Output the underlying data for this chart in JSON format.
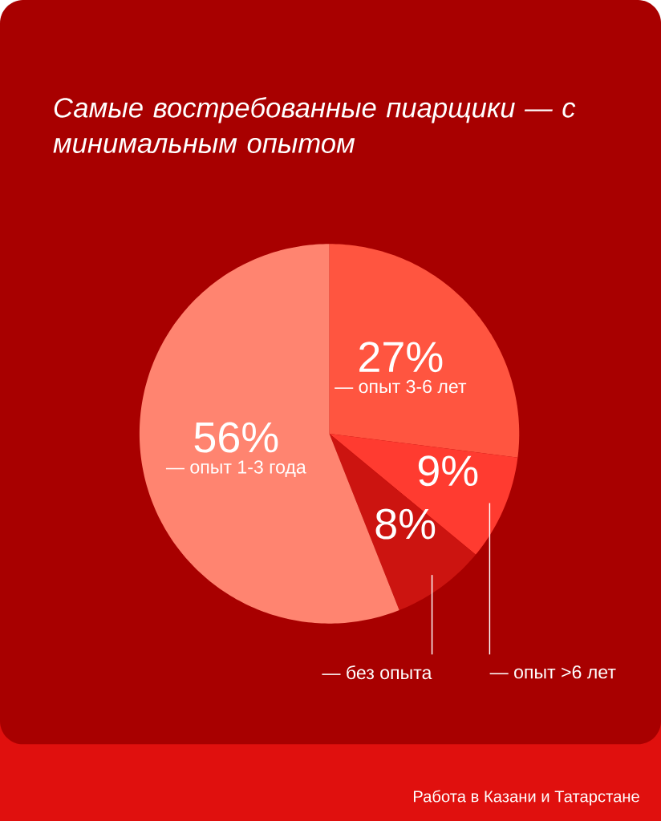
{
  "chart_data": {
    "type": "pie",
    "title": "Самые востребованные пиарщики — с минимальным опытом",
    "categories": [
      "— опыт 3-6 лет",
      "— опыт >6 лет",
      "— без опыта",
      "— опыт 1-3 года"
    ],
    "values": [
      27,
      9,
      8,
      56
    ],
    "value_labels": [
      "27%",
      "9%",
      "8%",
      "56%"
    ],
    "colors": [
      "#ff5540",
      "#ff3b30",
      "#cc1410",
      "#ff8470"
    ],
    "annotations": [
      "Работа в Казани и Татарстане"
    ]
  }
}
